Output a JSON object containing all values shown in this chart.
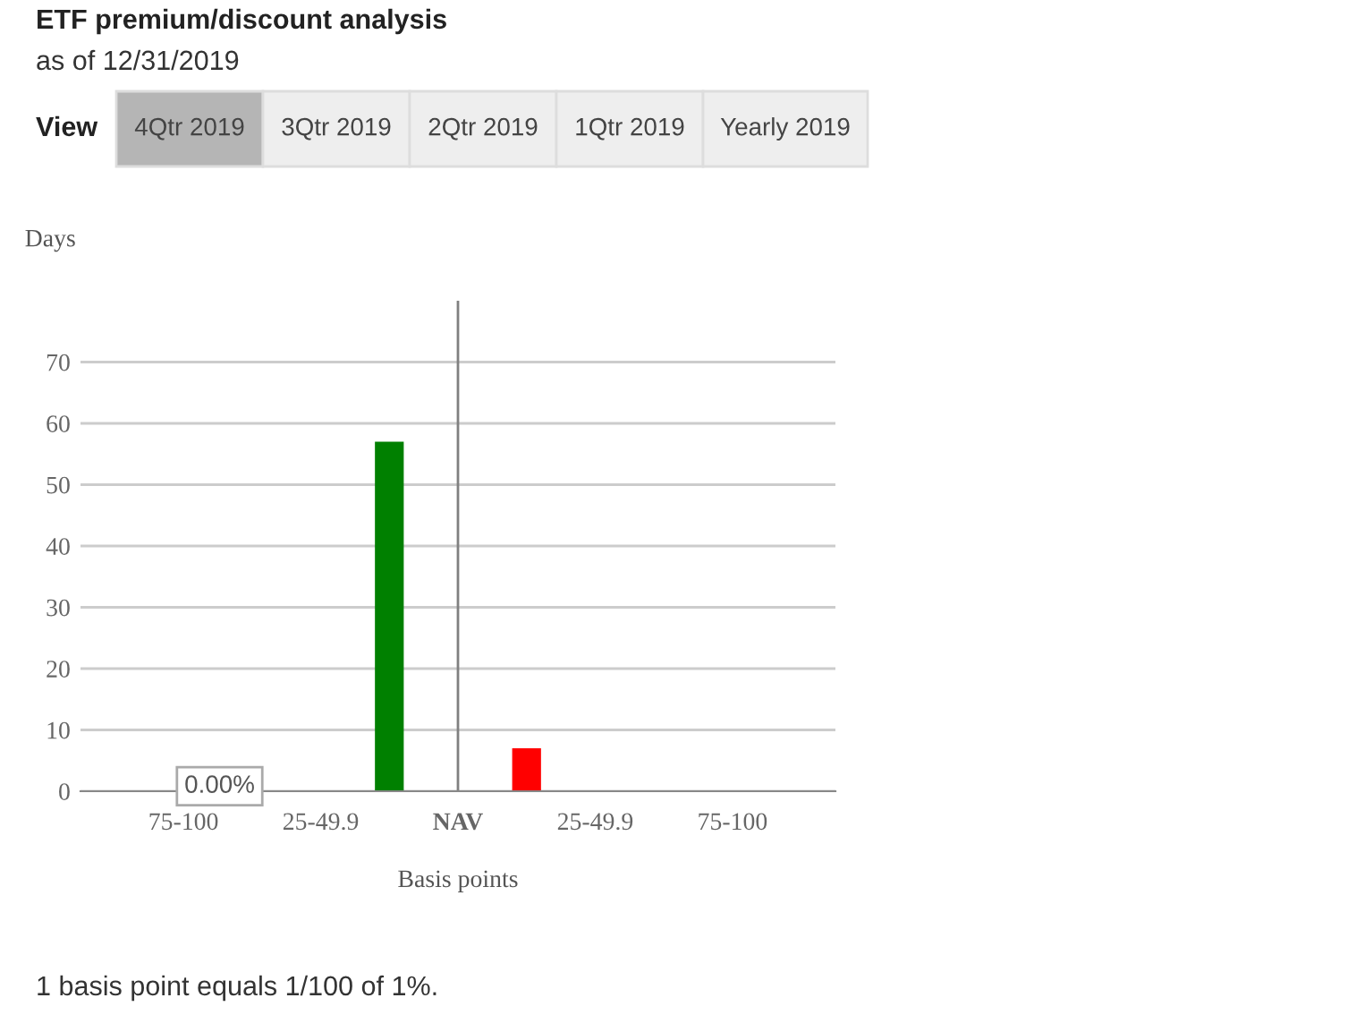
{
  "chart_data": {
    "type": "bar",
    "title": "ETF premium/discount analysis",
    "subtitle": "as of 12/31/2019",
    "xlabel": "Basis points",
    "ylabel": "Days",
    "categories": [
      null,
      "75-100",
      null,
      "25-49.9",
      null,
      "NAV",
      null,
      "25-49.9",
      null,
      "75-100",
      null
    ],
    "values": [
      0,
      0,
      0,
      0,
      57,
      null,
      7,
      0,
      0,
      0,
      0
    ],
    "colors": [
      "#008000",
      "#008000",
      "#008000",
      "#008000",
      "#008000",
      "#008000",
      "#ff0000",
      "#ff0000",
      "#ff0000",
      "#ff0000",
      "#ff0000"
    ],
    "ylim": [
      0,
      80
    ],
    "yticks": [
      0,
      10,
      20,
      30,
      40,
      50,
      60,
      70
    ],
    "grid": "y",
    "ref_lines": [
      {
        "axis": "x",
        "value": "NAV",
        "color": "#808080"
      }
    ],
    "annotations": [
      "View",
      "4Qtr 2019",
      "3Qtr 2019",
      "2Qtr 2019",
      "1Qtr 2019",
      "Yearly 2019",
      "0.00%",
      "1 basis point equals 1/100 of 1%."
    ]
  }
}
